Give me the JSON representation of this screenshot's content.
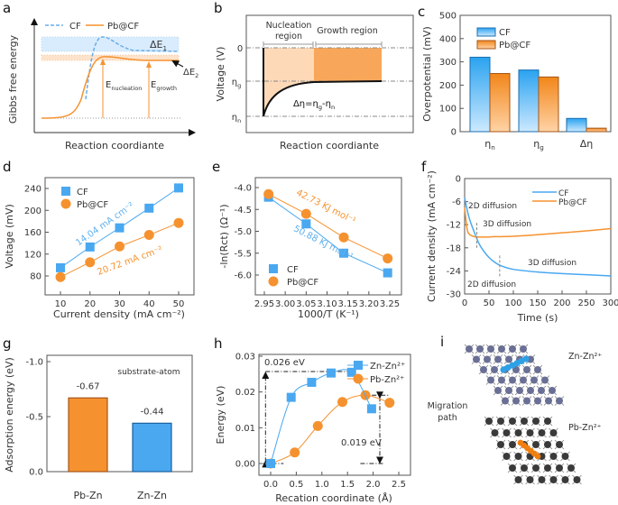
{
  "panels": {
    "labels": [
      "a",
      "b",
      "c",
      "d",
      "e",
      "f",
      "g",
      "h",
      "i"
    ]
  },
  "colors": {
    "cf": "#4aa8f0",
    "pb": "#f5922f",
    "cf_text": "#5fb0ee",
    "pb_text": "#f5922f"
  },
  "panel_a": {
    "ylabel": "Gibbs free energy",
    "xlabel": "Reaction coordiante",
    "legend": [
      "CF",
      "Pb@CF"
    ],
    "de1": {
      "main": "ΔE",
      "sub": "1"
    },
    "de2": {
      "main": "ΔE",
      "sub": "2"
    },
    "e_nucleation": {
      "main": "E",
      "sub": "nucleation"
    },
    "e_growth": {
      "main": "E",
      "sub": "growth"
    }
  },
  "panel_b": {
    "ylabel": "Voltage (V)",
    "xlabel": "Reaction coordiante",
    "region1": [
      "Nucleation",
      "region"
    ],
    "region2": "Growth region",
    "tick0": "0",
    "tick_g": {
      "main": "η",
      "sub": "g"
    },
    "tick_n": {
      "main": "η",
      "sub": "n"
    },
    "formula": {
      "a": "Δη=η",
      "b": "g",
      "c": "-η",
      "d": "n"
    }
  },
  "chart_data": [
    {
      "panel": "c",
      "type": "bar",
      "categories": [
        {
          "main": "η",
          "sub": "n"
        },
        {
          "main": "η",
          "sub": "g"
        },
        {
          "main": "Δη",
          "sub": ""
        }
      ],
      "ylabel": "Overpotential (mV)",
      "ylim": [
        0,
        500
      ],
      "yticks": [
        "0",
        "100",
        "200",
        "300",
        "400",
        "500"
      ],
      "legend": "top-left",
      "series": [
        {
          "name": "CF",
          "values": [
            320,
            265,
            57
          ]
        },
        {
          "name": "Pb@CF",
          "values": [
            250,
            235,
            15
          ]
        }
      ]
    },
    {
      "panel": "d",
      "type": "line",
      "x": [
        10,
        20,
        30,
        40,
        50
      ],
      "xlabel": "Current density (mA cm⁻²)",
      "ylabel": "Voltage (mV)",
      "xlim": [
        5,
        55
      ],
      "ylim": [
        45,
        260
      ],
      "xticks": [
        "10",
        "20",
        "30",
        "40",
        "50"
      ],
      "yticks": [
        "80",
        "120",
        "160",
        "200",
        "240"
      ],
      "legend": "top-left",
      "series": [
        {
          "name": "CF",
          "values": [
            95,
            133,
            168,
            204,
            241
          ]
        },
        {
          "name": "Pb@CF",
          "values": [
            78,
            105,
            134,
            155,
            177
          ]
        }
      ],
      "annotations": [
        "14.04 mA cm⁻²",
        "20.72 mA cm⁻²"
      ]
    },
    {
      "panel": "e",
      "type": "line",
      "xlabel": "1000/T (K⁻¹)",
      "ylabel": "-ln(Rct) (Ω⁻¹)",
      "xlim": [
        2.93,
        3.28
      ],
      "ylim": [
        -6.45,
        -3.78
      ],
      "xticks": [
        "2.95",
        "3.00",
        "3.05",
        "3.10",
        "3.15",
        "3.20",
        "3.25"
      ],
      "yticks": [
        "-4.0",
        "-4.5",
        "-5.0",
        "-5.5",
        "-6.0"
      ],
      "legend": "bottom-left",
      "series": [
        {
          "name": "CF",
          "x": [
            2.96,
            3.05,
            3.14,
            3.245
          ],
          "values": [
            -4.22,
            -4.83,
            -5.5,
            -5.95
          ]
        },
        {
          "name": "Pb@CF",
          "x": [
            2.96,
            3.05,
            3.14,
            3.245
          ],
          "values": [
            -4.15,
            -4.6,
            -5.14,
            -5.62
          ]
        }
      ],
      "annotations": [
        "42.73 KJ mol⁻¹",
        "50.88 KJ mol⁻¹"
      ]
    },
    {
      "panel": "f",
      "type": "line",
      "xlabel": "Time (s)",
      "ylabel": "Current density (mA cm⁻²)",
      "xlim": [
        0,
        300
      ],
      "ylim": [
        -30,
        0
      ],
      "xticks": [
        "0",
        "50",
        "100",
        "150",
        "200",
        "250",
        "300"
      ],
      "yticks": [
        "0",
        "-6",
        "-12",
        "-18",
        "-24",
        "-30"
      ],
      "legend": "top-right",
      "x": [
        0,
        5,
        10,
        20,
        30,
        40,
        50,
        60,
        75,
        100,
        150,
        200,
        250,
        300
      ],
      "series": [
        {
          "name": "CF",
          "values": [
            -5,
            -8,
            -10.5,
            -14,
            -17,
            -19,
            -20.5,
            -21.6,
            -22.7,
            -23.6,
            -24.3,
            -24.7,
            -25,
            -25.3
          ]
        },
        {
          "name": "Pb@CF",
          "values": [
            -7.5,
            -13,
            -14.5,
            -15.1,
            -15.2,
            -15.2,
            -15.2,
            -15.1,
            -15.1,
            -15,
            -14.6,
            -14.1,
            -13.6,
            -13
          ]
        }
      ],
      "annotations": [
        "2D diffusion",
        "3D diffusion",
        "3D diffusion",
        "2D diffusion"
      ]
    },
    {
      "panel": "g",
      "type": "bar",
      "categories": [
        "Pb-Zn",
        "Zn-Zn"
      ],
      "values": [
        -0.67,
        -0.44
      ],
      "value_labels": [
        "-0.67",
        "-0.44"
      ],
      "ylabel": "Adsorption energy (eV)",
      "ylim": [
        0,
        -1.06
      ],
      "yticks": [
        "0.0",
        "-0.5",
        "-1.0"
      ],
      "annotation": "substrate-atom"
    },
    {
      "panel": "h",
      "type": "line",
      "xlabel": "Recation coordinate (Å)",
      "ylabel": "Energy (eV)",
      "xlim": [
        -0.23,
        2.73
      ],
      "ylim": [
        -0.0033,
        0.0302
      ],
      "xticks": [
        "0.0",
        "0.5",
        "1.0",
        "1.5",
        "2.0",
        "2.5"
      ],
      "yticks": [
        "0.00",
        "0.01",
        "0.02",
        "0.03"
      ],
      "legend": "top-right",
      "series": [
        {
          "name": "Zn-Zn²⁺",
          "x": [
            0,
            0.4,
            0.8,
            1.18,
            1.58,
            1.97
          ],
          "values": [
            0,
            0.0185,
            0.0227,
            0.0253,
            0.0255,
            0.0153
          ]
        },
        {
          "name": "Pb-Zn²⁺",
          "x": [
            0,
            0.47,
            0.92,
            1.4,
            1.85,
            2.32
          ],
          "values": [
            0,
            0.0031,
            0.0105,
            0.0172,
            0.0191,
            0.017
          ]
        }
      ],
      "annotations": [
        "0.026 eV",
        "0.019 eV"
      ]
    }
  ],
  "panel_i": {
    "label_top": "Zn-Zn²⁺",
    "label_bottom": "Pb-Zn²⁺",
    "migration": [
      "Migration",
      "path"
    ]
  }
}
